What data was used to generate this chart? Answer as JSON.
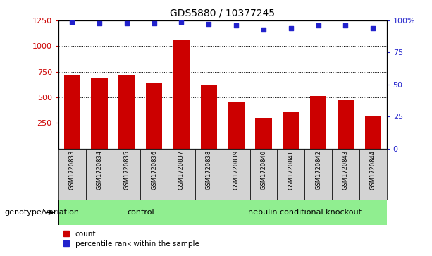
{
  "title": "GDS5880 / 10377245",
  "samples": [
    "GSM1720833",
    "GSM1720834",
    "GSM1720835",
    "GSM1720836",
    "GSM1720837",
    "GSM1720838",
    "GSM1720839",
    "GSM1720840",
    "GSM1720841",
    "GSM1720842",
    "GSM1720843",
    "GSM1720844"
  ],
  "counts": [
    710,
    690,
    715,
    635,
    1055,
    625,
    455,
    290,
    355,
    515,
    475,
    320
  ],
  "percentiles": [
    99,
    98,
    98,
    98,
    99,
    97,
    96,
    93,
    94,
    96,
    96,
    94
  ],
  "control_label": "control",
  "knockout_label": "nebulin conditional knockout",
  "genotype_label": "genotype/variation",
  "bar_color": "#cc0000",
  "dot_color": "#2222cc",
  "control_bg": "#90ee90",
  "knockout_bg": "#90ee90",
  "sample_bg": "#d3d3d3",
  "ylim_left": [
    0,
    1250
  ],
  "ylim_right": [
    0,
    100
  ],
  "yticks_left": [
    250,
    500,
    750,
    1000,
    1250
  ],
  "yticks_right": [
    0,
    25,
    50,
    75,
    100
  ],
  "legend_count": "count",
  "legend_percentile": "percentile rank within the sample",
  "n_control": 6,
  "n_knockout": 6
}
